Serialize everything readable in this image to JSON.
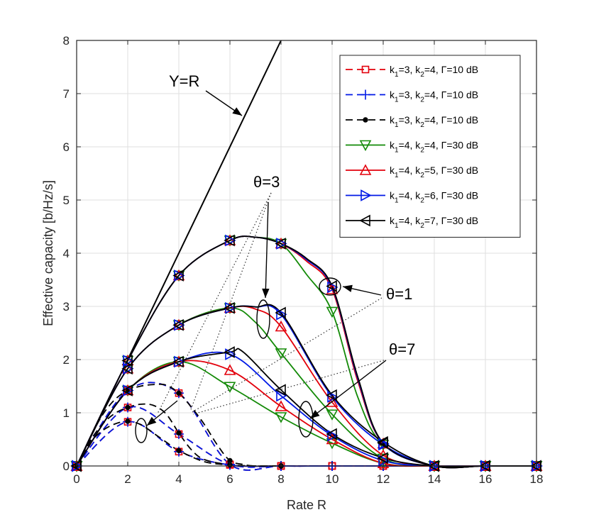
{
  "chart_data": {
    "type": "line",
    "xlabel": "Rate R",
    "ylabel": "Effective capacity [b/Hz/s]",
    "xlim": [
      0,
      18
    ],
    "ylim": [
      0,
      8
    ],
    "xticks": [
      0,
      2,
      4,
      6,
      8,
      10,
      12,
      14,
      16,
      18
    ],
    "yticks": [
      0,
      1,
      2,
      3,
      4,
      5,
      6,
      7,
      8
    ],
    "grid": true,
    "legend_position": "top-right",
    "reference_line": {
      "label": "Y=R",
      "x": [
        0,
        8
      ],
      "y": [
        0,
        8
      ]
    },
    "annotations": [
      {
        "id": "yr",
        "text": "Y=R"
      },
      {
        "id": "theta3",
        "text": "θ=3"
      },
      {
        "id": "theta1",
        "text": "θ=1"
      },
      {
        "id": "theta7",
        "text": "θ=7"
      }
    ],
    "series": [
      {
        "name": "k1=3, k2=4, Γ=10 dB",
        "legend": {
          "k1": "3",
          "k2": "4",
          "gamma": "10 dB"
        },
        "color": "#e3000b",
        "dash": true,
        "marker": "square",
        "curves": [
          {
            "x": [
              0,
              2,
              4,
              6,
              8,
              10,
              12,
              14,
              16,
              18
            ],
            "y": [
              0,
              0.83,
              0.27,
              0.02,
              0,
              0,
              0,
              0,
              0,
              0
            ]
          },
          {
            "x": [
              0,
              2,
              4,
              6,
              8,
              10,
              12,
              14,
              16,
              18
            ],
            "y": [
              0,
              1.1,
              0.6,
              0.03,
              0,
              0,
              0,
              0,
              0,
              0
            ]
          },
          {
            "x": [
              0,
              2,
              4,
              6,
              8,
              10,
              12,
              14,
              16,
              18
            ],
            "y": [
              0,
              1.42,
              1.37,
              0.03,
              0,
              0,
              0,
              0,
              0,
              0
            ]
          }
        ]
      },
      {
        "name": "k1=3, k2=4, Γ=10 dB",
        "legend": {
          "k1": "3",
          "k2": "4",
          "gamma": "10 dB"
        },
        "color": "#0019e6",
        "dash": true,
        "marker": "plus",
        "curves": [
          {
            "x": [
              0,
              2,
              4,
              6,
              8,
              10,
              12,
              14,
              16,
              18
            ],
            "y": [
              0,
              0.83,
              0.27,
              0.02,
              0,
              0,
              0,
              0,
              0,
              0
            ]
          },
          {
            "x": [
              0,
              2,
              4,
              6,
              8,
              10,
              12,
              14,
              16,
              18
            ],
            "y": [
              0,
              1.1,
              0.6,
              0.03,
              0,
              0,
              0,
              0,
              0,
              0
            ]
          },
          {
            "x": [
              0,
              2,
              4,
              6,
              8,
              10,
              12,
              14,
              16,
              18
            ],
            "y": [
              0,
              1.42,
              1.37,
              0.03,
              0,
              0,
              0,
              0,
              0,
              0
            ]
          }
        ]
      },
      {
        "name": "k1=3, k2=4, Γ=10 dB",
        "legend": {
          "k1": "3",
          "k2": "4",
          "gamma": "10 dB"
        },
        "color": "#000000",
        "dash": true,
        "marker": "dot",
        "curves": [
          {
            "x": [
              0,
              0.5,
              1,
              1.5,
              2,
              2.5,
              3,
              3.5,
              4,
              5,
              6,
              7,
              8
            ],
            "y": [
              0,
              0.42,
              0.66,
              0.79,
              0.84,
              0.78,
              0.62,
              0.45,
              0.29,
              0.08,
              0.02,
              0,
              0
            ]
          },
          {
            "x": [
              0,
              0.5,
              1,
              1.5,
              2,
              2.5,
              3,
              3.5,
              4,
              4.5,
              5,
              6,
              7,
              8
            ],
            "y": [
              0,
              0.45,
              0.78,
              0.99,
              1.1,
              1.16,
              1.14,
              0.98,
              0.62,
              0.3,
              0.12,
              0.02,
              0,
              0
            ]
          },
          {
            "x": [
              0,
              0.5,
              1,
              1.5,
              2,
              2.5,
              3,
              3.5,
              4,
              4.5,
              5,
              5.5,
              6,
              6.5,
              7,
              8
            ],
            "y": [
              0,
              0.5,
              0.95,
              1.25,
              1.42,
              1.5,
              1.53,
              1.52,
              1.37,
              1.1,
              0.78,
              0.4,
              0.1,
              0.03,
              0,
              0
            ]
          }
        ]
      },
      {
        "name": "k1=4, k2=4, Γ=30 dB",
        "legend": {
          "k1": "4",
          "k2": "4",
          "gamma": "30 dB"
        },
        "color": "#138a07",
        "dash": false,
        "marker": "triangle-down",
        "curves": [
          {
            "x": [
              0,
              2,
              4,
              6,
              8,
              10,
              12,
              14,
              16,
              18
            ],
            "y": [
              0,
              1.42,
              1.96,
              1.49,
              0.92,
              0.43,
              0.05,
              0,
              0,
              0
            ]
          },
          {
            "x": [
              0,
              2,
              4,
              6,
              7,
              8,
              10,
              12,
              14,
              16,
              18
            ],
            "y": [
              0,
              1.83,
              2.65,
              2.97,
              2.7,
              2.12,
              0.97,
              0.14,
              0,
              0,
              0
            ]
          },
          {
            "x": [
              0,
              2,
              4,
              6,
              7,
              8,
              9,
              10,
              11,
              12,
              14,
              16,
              18
            ],
            "y": [
              0,
              1.98,
              3.58,
              4.24,
              4.3,
              4.18,
              3.6,
              2.9,
              1.3,
              0.4,
              0,
              0,
              0
            ]
          }
        ]
      },
      {
        "name": "k1=4, k2=5, Γ=30 dB",
        "legend": {
          "k1": "4",
          "k2": "5",
          "gamma": "30 dB"
        },
        "color": "#e3000b",
        "dash": false,
        "marker": "triangle-up",
        "curves": [
          {
            "x": [
              0,
              2,
              4,
              6,
              8,
              10,
              12,
              14,
              16,
              18
            ],
            "y": [
              0,
              1.42,
              1.96,
              1.8,
              1.12,
              0.5,
              0.05,
              0,
              0,
              0
            ]
          },
          {
            "x": [
              0,
              2,
              4,
              6,
              7,
              8,
              10,
              12,
              14,
              16,
              18
            ],
            "y": [
              0,
              1.83,
              2.65,
              2.97,
              2.95,
              2.62,
              1.2,
              0.2,
              0,
              0,
              0
            ]
          },
          {
            "x": [
              0,
              2,
              4,
              6,
              7,
              8,
              9,
              10,
              11,
              12,
              14,
              16,
              18
            ],
            "y": [
              0,
              1.98,
              3.58,
              4.24,
              4.3,
              4.18,
              3.85,
              3.32,
              1.6,
              0.42,
              0,
              0,
              0
            ]
          }
        ]
      },
      {
        "name": "k1=4, k2=6, Γ=30 dB",
        "legend": {
          "k1": "4",
          "k2": "6",
          "gamma": "30 dB"
        },
        "color": "#0019e6",
        "dash": false,
        "marker": "triangle-right",
        "curves": [
          {
            "x": [
              0,
              2,
              4,
              6,
              8,
              10,
              12,
              14,
              16,
              18
            ],
            "y": [
              0,
              1.42,
              1.96,
              2.1,
              1.32,
              0.57,
              0.1,
              0,
              0,
              0
            ]
          },
          {
            "x": [
              0,
              2,
              4,
              6,
              7,
              8,
              10,
              12,
              14,
              16,
              18
            ],
            "y": [
              0,
              1.83,
              2.65,
              2.97,
              2.99,
              2.85,
              1.3,
              0.4,
              0,
              0,
              0
            ]
          },
          {
            "x": [
              0,
              2,
              4,
              6,
              7,
              8,
              9,
              10,
              11,
              12,
              14,
              16,
              18
            ],
            "y": [
              0,
              1.98,
              3.58,
              4.24,
              4.3,
              4.18,
              3.88,
              3.36,
              1.65,
              0.42,
              0,
              0,
              0
            ]
          }
        ]
      },
      {
        "name": "k1=4, k2=7, Γ=30 dB",
        "legend": {
          "k1": "4",
          "k2": "7",
          "gamma": "30 dB"
        },
        "color": "#000000",
        "dash": false,
        "marker": "triangle-left",
        "curves": [
          {
            "x": [
              0,
              2,
              4,
              6,
              6.5,
              8,
              10,
              12,
              14,
              16,
              18
            ],
            "y": [
              0,
              1.42,
              1.96,
              2.14,
              2.15,
              1.43,
              0.6,
              0.15,
              0,
              0,
              0
            ]
          },
          {
            "x": [
              0,
              2,
              4,
              6,
              7,
              8,
              10,
              12,
              14,
              16,
              18
            ],
            "y": [
              0,
              1.83,
              2.65,
              2.97,
              2.99,
              2.88,
              1.33,
              0.45,
              0,
              0,
              0
            ]
          },
          {
            "x": [
              0,
              2,
              4,
              6,
              7,
              8,
              9,
              10,
              11,
              12,
              14,
              16,
              18
            ],
            "y": [
              0,
              1.98,
              3.58,
              4.24,
              4.3,
              4.18,
              3.9,
              3.38,
              1.68,
              0.43,
              0,
              0,
              0
            ]
          }
        ]
      }
    ]
  }
}
